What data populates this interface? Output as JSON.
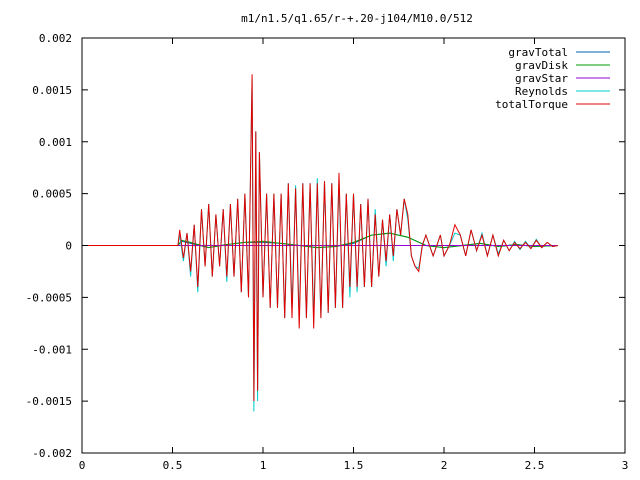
{
  "chart_data": {
    "type": "line",
    "title": "m1/n1.5/q1.65/r-+.20-j104/M10.0/512",
    "xlabel": "",
    "ylabel": "",
    "xlim": [
      0,
      3
    ],
    "ylim": [
      -0.002,
      0.002
    ],
    "x_ticks": [
      "0",
      "0.5",
      "1",
      "1.5",
      "2",
      "2.5",
      "3"
    ],
    "y_ticks": [
      "-0.002",
      "-0.0015",
      "-0.001",
      "-0.0005",
      "0",
      "0.0005",
      "0.001",
      "0.0015",
      "0.002"
    ],
    "grid": false,
    "legend_position": "top-right",
    "series": [
      {
        "name": "gravTotal",
        "color": "#0060ad",
        "points": [
          [
            0,
            0
          ],
          [
            0.53,
            0
          ],
          [
            0.55,
            4e-05
          ],
          [
            0.6,
            2e-05
          ],
          [
            0.7,
            -2e-05
          ],
          [
            0.8,
            1e-05
          ],
          [
            0.9,
            3e-05
          ],
          [
            1.0,
            3e-05
          ],
          [
            1.1,
            2e-05
          ],
          [
            1.2,
            0.0
          ],
          [
            1.3,
            -2e-05
          ],
          [
            1.4,
            -1e-05
          ],
          [
            1.5,
            2e-05
          ],
          [
            1.6,
            0.0001
          ],
          [
            1.7,
            0.00012
          ],
          [
            1.8,
            8e-05
          ],
          [
            1.9,
            0.0
          ],
          [
            2.0,
            -2e-05
          ],
          [
            2.1,
            0.0
          ],
          [
            2.2,
            2e-05
          ],
          [
            2.3,
            -1e-05
          ],
          [
            2.4,
            1e-05
          ],
          [
            2.5,
            -1e-05
          ],
          [
            2.63,
            0.0
          ]
        ]
      },
      {
        "name": "gravDisk",
        "color": "#009e00",
        "points": [
          [
            0,
            0
          ],
          [
            0.53,
            0
          ],
          [
            0.55,
            5e-05
          ],
          [
            0.6,
            3e-05
          ],
          [
            0.7,
            -2e-05
          ],
          [
            0.8,
            1e-05
          ],
          [
            0.9,
            3e-05
          ],
          [
            1.0,
            4e-05
          ],
          [
            1.1,
            2e-05
          ],
          [
            1.2,
            0.0
          ],
          [
            1.3,
            -2e-05
          ],
          [
            1.4,
            -1e-05
          ],
          [
            1.5,
            3e-05
          ],
          [
            1.6,
            0.0001
          ],
          [
            1.7,
            0.00012
          ],
          [
            1.8,
            8e-05
          ],
          [
            1.9,
            0.0
          ],
          [
            2.0,
            -2e-05
          ],
          [
            2.1,
            0.0
          ],
          [
            2.2,
            2e-05
          ],
          [
            2.3,
            -1e-05
          ],
          [
            2.4,
            1e-05
          ],
          [
            2.5,
            -1e-05
          ],
          [
            2.63,
            0.0
          ]
        ]
      },
      {
        "name": "gravStar",
        "color": "#9400d3",
        "points": [
          [
            0,
            0
          ],
          [
            0.53,
            0
          ],
          [
            1.0,
            0.0
          ],
          [
            1.5,
            0.0
          ],
          [
            2.0,
            0.0
          ],
          [
            2.63,
            0.0
          ]
        ]
      },
      {
        "name": "Reynolds",
        "color": "#00cccc",
        "points": [
          [
            0,
            0
          ],
          [
            0.53,
            0
          ],
          [
            0.54,
            0.0001
          ],
          [
            0.56,
            -0.00015
          ],
          [
            0.58,
            0.00012
          ],
          [
            0.6,
            -0.0003
          ],
          [
            0.62,
            0.0002
          ],
          [
            0.64,
            -0.00045
          ],
          [
            0.66,
            0.00035
          ],
          [
            0.68,
            -0.0002
          ],
          [
            0.7,
            0.0004
          ],
          [
            0.72,
            -0.0003
          ],
          [
            0.74,
            0.0003
          ],
          [
            0.76,
            -0.0002
          ],
          [
            0.78,
            0.00035
          ],
          [
            0.8,
            -0.00035
          ],
          [
            0.82,
            0.0004
          ],
          [
            0.84,
            -0.0003
          ],
          [
            0.86,
            0.00045
          ],
          [
            0.88,
            -0.00045
          ],
          [
            0.9,
            0.0005
          ],
          [
            0.92,
            -0.0005
          ],
          [
            0.94,
            0.0016
          ],
          [
            0.95,
            -0.0016
          ],
          [
            0.96,
            0.0011
          ],
          [
            0.97,
            -0.0015
          ],
          [
            0.98,
            0.0009
          ],
          [
            1.0,
            -0.0005
          ],
          [
            1.02,
            0.0005
          ],
          [
            1.04,
            -0.0006
          ],
          [
            1.06,
            0.0005
          ],
          [
            1.08,
            -0.0006
          ],
          [
            1.1,
            0.0005
          ],
          [
            1.12,
            -0.0007
          ],
          [
            1.14,
            0.0006
          ],
          [
            1.16,
            -0.0006
          ],
          [
            1.18,
            0.00058
          ],
          [
            1.2,
            -0.0007
          ],
          [
            1.22,
            0.0006
          ],
          [
            1.24,
            -0.0007
          ],
          [
            1.26,
            0.0006
          ],
          [
            1.28,
            -0.0007
          ],
          [
            1.3,
            0.00065
          ],
          [
            1.32,
            -0.0007
          ],
          [
            1.34,
            0.00062
          ],
          [
            1.36,
            -0.00065
          ],
          [
            1.38,
            0.0006
          ],
          [
            1.4,
            -0.0006
          ],
          [
            1.42,
            0.0006
          ],
          [
            1.44,
            -0.0006
          ],
          [
            1.46,
            0.0005
          ],
          [
            1.48,
            -0.0005
          ],
          [
            1.5,
            0.0005
          ],
          [
            1.52,
            -0.00045
          ],
          [
            1.54,
            0.0004
          ],
          [
            1.56,
            -0.0004
          ],
          [
            1.58,
            0.00045
          ],
          [
            1.6,
            -0.0004
          ],
          [
            1.62,
            0.00035
          ],
          [
            1.64,
            -0.0003
          ],
          [
            1.66,
            0.00025
          ],
          [
            1.68,
            -0.0002
          ],
          [
            1.7,
            0.0003
          ],
          [
            1.72,
            -0.00015
          ],
          [
            1.74,
            0.00035
          ],
          [
            1.76,
            0.0001
          ],
          [
            1.78,
            0.00045
          ],
          [
            1.8,
            0.00025
          ],
          [
            1.82,
            -0.0001
          ],
          [
            1.84,
            -0.0002
          ],
          [
            1.86,
            -0.00022
          ],
          [
            1.88,
            0.0
          ],
          [
            1.9,
            0.0001
          ],
          [
            1.92,
            0.0
          ],
          [
            1.94,
            -0.0001
          ],
          [
            1.96,
            0.0
          ],
          [
            1.98,
            0.0001
          ],
          [
            2.0,
            -0.0001
          ],
          [
            2.03,
            0.0
          ],
          [
            2.06,
            0.00012
          ],
          [
            2.09,
            0.0001
          ],
          [
            2.12,
            -0.0001
          ],
          [
            2.15,
            0.00015
          ],
          [
            2.18,
            -5e-05
          ],
          [
            2.21,
            0.00012
          ],
          [
            2.24,
            -0.0001
          ],
          [
            2.27,
            0.0001
          ],
          [
            2.3,
            -8e-05
          ],
          [
            2.33,
            5e-05
          ],
          [
            2.36,
            -5e-05
          ],
          [
            2.39,
            4e-05
          ],
          [
            2.42,
            -4e-05
          ],
          [
            2.45,
            4e-05
          ],
          [
            2.48,
            -3e-05
          ],
          [
            2.51,
            6e-05
          ],
          [
            2.54,
            -2e-05
          ],
          [
            2.57,
            3e-05
          ],
          [
            2.6,
            -1e-05
          ],
          [
            2.63,
            0.0
          ]
        ]
      },
      {
        "name": "totalTorque",
        "color": "#e00000",
        "points": [
          [
            0,
            0
          ],
          [
            0.53,
            0
          ],
          [
            0.54,
            0.00015
          ],
          [
            0.56,
            -0.00012
          ],
          [
            0.58,
            0.00012
          ],
          [
            0.6,
            -0.00025
          ],
          [
            0.62,
            0.0002
          ],
          [
            0.64,
            -0.0004
          ],
          [
            0.66,
            0.00035
          ],
          [
            0.68,
            -0.0002
          ],
          [
            0.7,
            0.0004
          ],
          [
            0.72,
            -0.0003
          ],
          [
            0.74,
            0.0003
          ],
          [
            0.76,
            -0.0002
          ],
          [
            0.78,
            0.00035
          ],
          [
            0.8,
            -0.0003
          ],
          [
            0.82,
            0.0004
          ],
          [
            0.84,
            -0.0003
          ],
          [
            0.86,
            0.00045
          ],
          [
            0.88,
            -0.00045
          ],
          [
            0.9,
            0.0005
          ],
          [
            0.92,
            -0.0005
          ],
          [
            0.94,
            0.00165
          ],
          [
            0.95,
            -0.0015
          ],
          [
            0.96,
            0.0011
          ],
          [
            0.97,
            -0.0014
          ],
          [
            0.98,
            0.0009
          ],
          [
            1.0,
            -0.0005
          ],
          [
            1.02,
            0.0005
          ],
          [
            1.04,
            -0.0006
          ],
          [
            1.06,
            0.0005
          ],
          [
            1.08,
            -0.0006
          ],
          [
            1.1,
            0.0005
          ],
          [
            1.12,
            -0.0007
          ],
          [
            1.14,
            0.0006
          ],
          [
            1.16,
            -0.0007
          ],
          [
            1.18,
            0.00055
          ],
          [
            1.2,
            -0.0008
          ],
          [
            1.22,
            0.0006
          ],
          [
            1.24,
            -0.0007
          ],
          [
            1.26,
            0.0006
          ],
          [
            1.28,
            -0.0008
          ],
          [
            1.3,
            0.0006
          ],
          [
            1.32,
            -0.0007
          ],
          [
            1.34,
            0.00062
          ],
          [
            1.36,
            -0.00065
          ],
          [
            1.38,
            0.0006
          ],
          [
            1.4,
            -0.0006
          ],
          [
            1.42,
            0.0007
          ],
          [
            1.44,
            -0.0006
          ],
          [
            1.46,
            0.0005
          ],
          [
            1.48,
            -0.0004
          ],
          [
            1.5,
            0.0005
          ],
          [
            1.52,
            -0.0004
          ],
          [
            1.54,
            0.0004
          ],
          [
            1.56,
            -0.0004
          ],
          [
            1.58,
            0.00045
          ],
          [
            1.6,
            -0.0004
          ],
          [
            1.62,
            0.0003
          ],
          [
            1.64,
            -0.0003
          ],
          [
            1.66,
            0.00025
          ],
          [
            1.68,
            -0.00015
          ],
          [
            1.7,
            0.0003
          ],
          [
            1.72,
            -0.0001
          ],
          [
            1.74,
            0.00035
          ],
          [
            1.76,
            0.0001
          ],
          [
            1.78,
            0.00045
          ],
          [
            1.8,
            0.0003
          ],
          [
            1.82,
            -0.0001
          ],
          [
            1.84,
            -0.0002
          ],
          [
            1.86,
            -0.00025
          ],
          [
            1.88,
            0.0
          ],
          [
            1.9,
            0.0001
          ],
          [
            1.92,
            0.0
          ],
          [
            1.94,
            -0.0001
          ],
          [
            1.96,
            0.0
          ],
          [
            1.98,
            0.0001
          ],
          [
            2.0,
            -0.0001
          ],
          [
            2.03,
            0.0
          ],
          [
            2.06,
            0.0002
          ],
          [
            2.09,
            0.0001
          ],
          [
            2.12,
            -0.0001
          ],
          [
            2.15,
            0.00015
          ],
          [
            2.18,
            -5e-05
          ],
          [
            2.21,
            0.0001
          ],
          [
            2.24,
            -0.0001
          ],
          [
            2.27,
            0.0001
          ],
          [
            2.3,
            -0.0001
          ],
          [
            2.33,
            5e-05
          ],
          [
            2.36,
            -5e-05
          ],
          [
            2.39,
            3e-05
          ],
          [
            2.42,
            -3e-05
          ],
          [
            2.45,
            3e-05
          ],
          [
            2.48,
            -3e-05
          ],
          [
            2.51,
            5e-05
          ],
          [
            2.54,
            -2e-05
          ],
          [
            2.57,
            3e-05
          ],
          [
            2.6,
            -1e-05
          ],
          [
            2.63,
            0.0
          ]
        ]
      }
    ]
  }
}
